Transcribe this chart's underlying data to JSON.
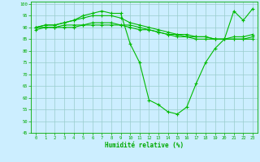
{
  "background_color": "#cceeff",
  "grid_color": "#99cccc",
  "line_color": "#00bb00",
  "marker_color": "#00bb00",
  "xlabel": "Humidité relative (%)",
  "xlabel_color": "#00aa00",
  "tick_color": "#00aa00",
  "ylim": [
    45,
    101
  ],
  "xlim": [
    -0.5,
    23.5
  ],
  "yticks": [
    45,
    50,
    55,
    60,
    65,
    70,
    75,
    80,
    85,
    90,
    95,
    100
  ],
  "xticks": [
    0,
    1,
    2,
    3,
    4,
    5,
    6,
    7,
    8,
    9,
    10,
    11,
    12,
    13,
    14,
    15,
    16,
    17,
    18,
    19,
    20,
    21,
    22,
    23
  ],
  "series": [
    [
      90,
      91,
      91,
      92,
      93,
      95,
      96,
      97,
      96,
      96,
      83,
      75,
      59,
      57,
      54,
      53,
      56,
      66,
      75,
      81,
      85,
      97,
      93,
      98
    ],
    [
      90,
      91,
      91,
      92,
      93,
      94,
      95,
      95,
      95,
      94,
      92,
      91,
      90,
      89,
      88,
      87,
      87,
      86,
      86,
      85,
      85,
      86,
      86,
      87
    ],
    [
      90,
      90,
      90,
      91,
      91,
      91,
      92,
      92,
      92,
      91,
      91,
      90,
      89,
      88,
      87,
      87,
      86,
      86,
      86,
      85,
      85,
      85,
      85,
      86
    ],
    [
      89,
      90,
      90,
      90,
      90,
      91,
      91,
      91,
      91,
      91,
      90,
      89,
      89,
      88,
      87,
      86,
      86,
      85,
      85,
      85,
      85,
      85,
      85,
      85
    ]
  ]
}
